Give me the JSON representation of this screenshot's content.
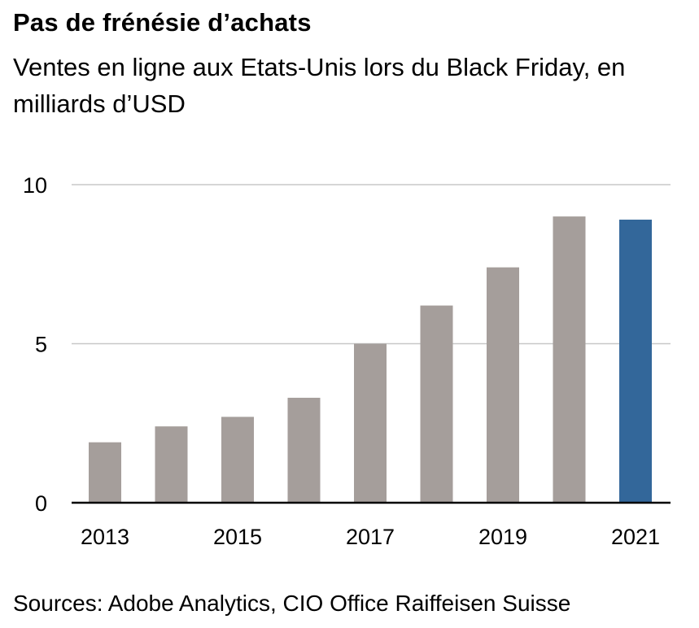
{
  "title": "Pas de frénésie d’achats",
  "subtitle": "Ventes en ligne aux Etats-Unis lors du Black Friday, en milliards d’USD",
  "source": "Sources: Adobe Analytics, CIO Office Raiffeisen Suisse",
  "colors": {
    "bar": "#a59e9b",
    "highlight": "#33679a",
    "grid": "#c8c8c8",
    "axis": "#000000"
  },
  "chart_data": {
    "type": "bar",
    "categories": [
      "2013",
      "2014",
      "2015",
      "2016",
      "2017",
      "2018",
      "2019",
      "2020",
      "2021"
    ],
    "values": [
      1.9,
      2.4,
      2.7,
      3.3,
      5.0,
      6.2,
      7.4,
      9.0,
      8.9
    ],
    "highlight_index": 8,
    "xtick_labels": [
      "2013",
      "",
      "2015",
      "",
      "2017",
      "",
      "2019",
      "",
      "2021"
    ],
    "yticks": [
      0,
      5,
      10
    ],
    "ylim": [
      0,
      10
    ],
    "grid": true,
    "title": "Pas de frénésie d’achats",
    "xlabel": "",
    "ylabel": ""
  }
}
